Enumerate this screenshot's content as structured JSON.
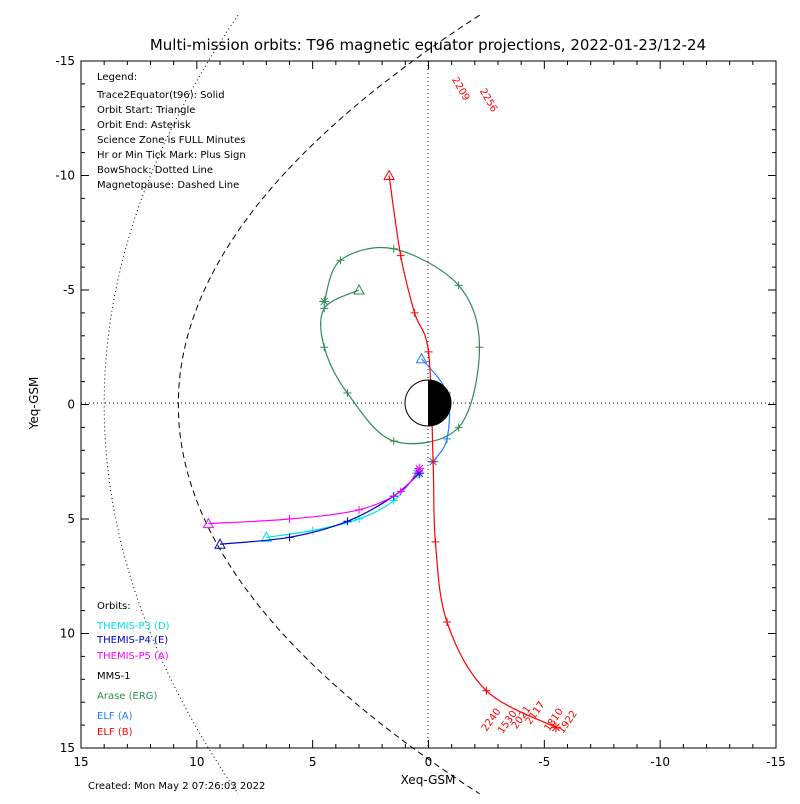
{
  "chart_data": {
    "type": "line",
    "title": "Multi-mission orbits: T96 magnetic equator projections, 2022-01-23/12-24",
    "xlabel": "Xeq-GSM",
    "ylabel": "Yeq-GSM",
    "xlim": [
      15,
      -15
    ],
    "ylim": [
      -15,
      15
    ],
    "xticks": [
      15,
      10,
      5,
      0,
      -5,
      -10,
      -15
    ],
    "yticks": [
      -15,
      -10,
      -5,
      0,
      5,
      10,
      15
    ],
    "grid": false,
    "created": "Created: Mon May  2 07:26:03 2022",
    "legend": {
      "heading": "Legend:",
      "lines": [
        "Trace2Equator(t96): Solid",
        "Orbit Start: Triangle",
        "Orbit End: Asterisk",
        "Science Zone is FULL Minutes",
        "Hr or Min Tick Mark: Plus Sign",
        "BowShock: Dotted Line",
        "Magnetopause: Dashed Line"
      ]
    },
    "orbits_heading": "Orbits:",
    "series": [
      {
        "name": "THEMIS-P3 (D)",
        "color": "#00e5e5",
        "points": [
          [
            7.0,
            5.8
          ],
          [
            5.0,
            5.5
          ],
          [
            3.0,
            5.0
          ],
          [
            1.5,
            4.2
          ],
          [
            0.5,
            3.0
          ]
        ]
      },
      {
        "name": "THEMIS-P4 (E)",
        "color": "#0000cc",
        "points": [
          [
            9.0,
            6.1
          ],
          [
            6.0,
            5.8
          ],
          [
            3.5,
            5.1
          ],
          [
            1.5,
            4.0
          ],
          [
            0.4,
            3.0
          ]
        ]
      },
      {
        "name": "THEMIS-P5 (A)",
        "color": "#ff00ff",
        "points": [
          [
            9.5,
            5.2
          ],
          [
            6.0,
            5.0
          ],
          [
            3.0,
            4.6
          ],
          [
            1.2,
            3.8
          ],
          [
            0.4,
            2.8
          ]
        ]
      },
      {
        "name": "MMS-1",
        "color": "#000000",
        "points": []
      },
      {
        "name": "Arase (ERG)",
        "color": "#2e8b57",
        "points": [
          [
            3.0,
            -5.0
          ],
          [
            4.5,
            -4.2
          ],
          [
            4.5,
            -2.5
          ],
          [
            3.5,
            -0.5
          ],
          [
            1.5,
            1.6
          ],
          [
            -1.3,
            1.0
          ],
          [
            -2.2,
            -2.5
          ],
          [
            -1.3,
            -5.2
          ],
          [
            1.5,
            -6.8
          ],
          [
            3.8,
            -6.3
          ],
          [
            4.5,
            -4.5
          ]
        ]
      },
      {
        "name": "ELF (A)",
        "color": "#1e7fff",
        "points": [
          [
            0.3,
            -2.0
          ],
          [
            -0.8,
            -0.5
          ],
          [
            -0.8,
            1.5
          ],
          [
            -0.2,
            2.5
          ]
        ]
      },
      {
        "name": "ELF (B)",
        "color": "#ff0000",
        "points": [
          [
            1.7,
            -10.0
          ],
          [
            1.2,
            -6.5
          ],
          [
            0.6,
            -4.0
          ],
          [
            0.0,
            -2.3
          ],
          [
            -0.2,
            2.5
          ],
          [
            -0.3,
            6.0
          ],
          [
            -0.8,
            9.5
          ],
          [
            -2.5,
            12.5
          ],
          [
            -5.5,
            14.1
          ]
        ]
      }
    ],
    "boundaries": {
      "bow_shock": "dotted",
      "magnetopause": "dashed"
    },
    "elf_b_labels": [
      "2209",
      "2256",
      "2240",
      "1530",
      "2021",
      "2117",
      "1810",
      "1922"
    ],
    "earth": "day side white, night side black"
  },
  "colors": {
    "themis_p3": "#00e5e5",
    "themis_p4": "#0000cc",
    "themis_p5": "#ff00ff",
    "mms1": "#000000",
    "arase": "#2e8b57",
    "elf_a": "#1e7fff",
    "elf_b": "#ff0000"
  }
}
